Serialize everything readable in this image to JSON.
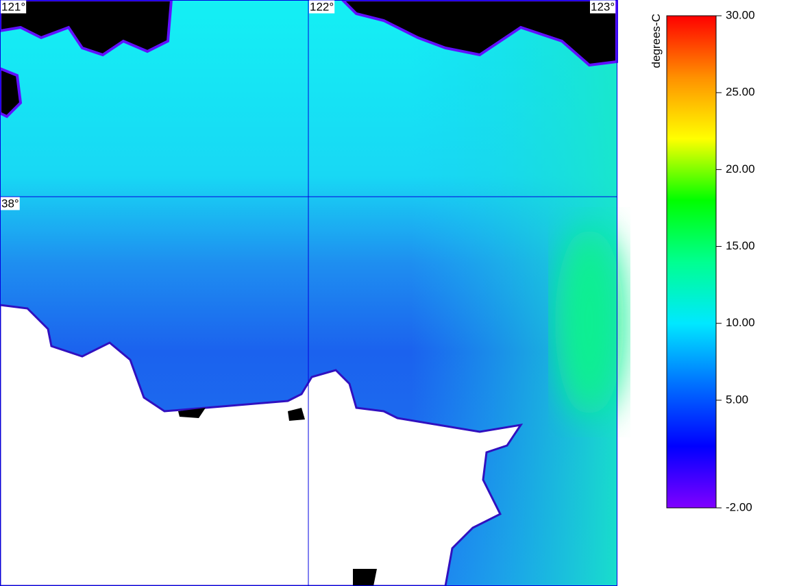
{
  "map": {
    "lon_labels": [
      "121°",
      "122°",
      "123°"
    ],
    "lat_labels": [
      "38°"
    ]
  },
  "colorbar": {
    "title": "degrees-C",
    "lim": [
      -2,
      30
    ],
    "ticks": [
      {
        "value": 30,
        "label": "30.00"
      },
      {
        "value": 25,
        "label": "25.00"
      },
      {
        "value": 20,
        "label": "20.00"
      },
      {
        "value": 15,
        "label": "15.00"
      },
      {
        "value": 10,
        "label": "10.00"
      },
      {
        "value": 5,
        "label": "5.00"
      },
      {
        "value": -2,
        "label": "-2.00"
      }
    ],
    "colors": [
      "#8000ff",
      "#0000ff",
      "#0070ff",
      "#00e8ff",
      "#00ff90",
      "#00ff00",
      "#ffff00",
      "#ff9000",
      "#ff0000"
    ]
  }
}
